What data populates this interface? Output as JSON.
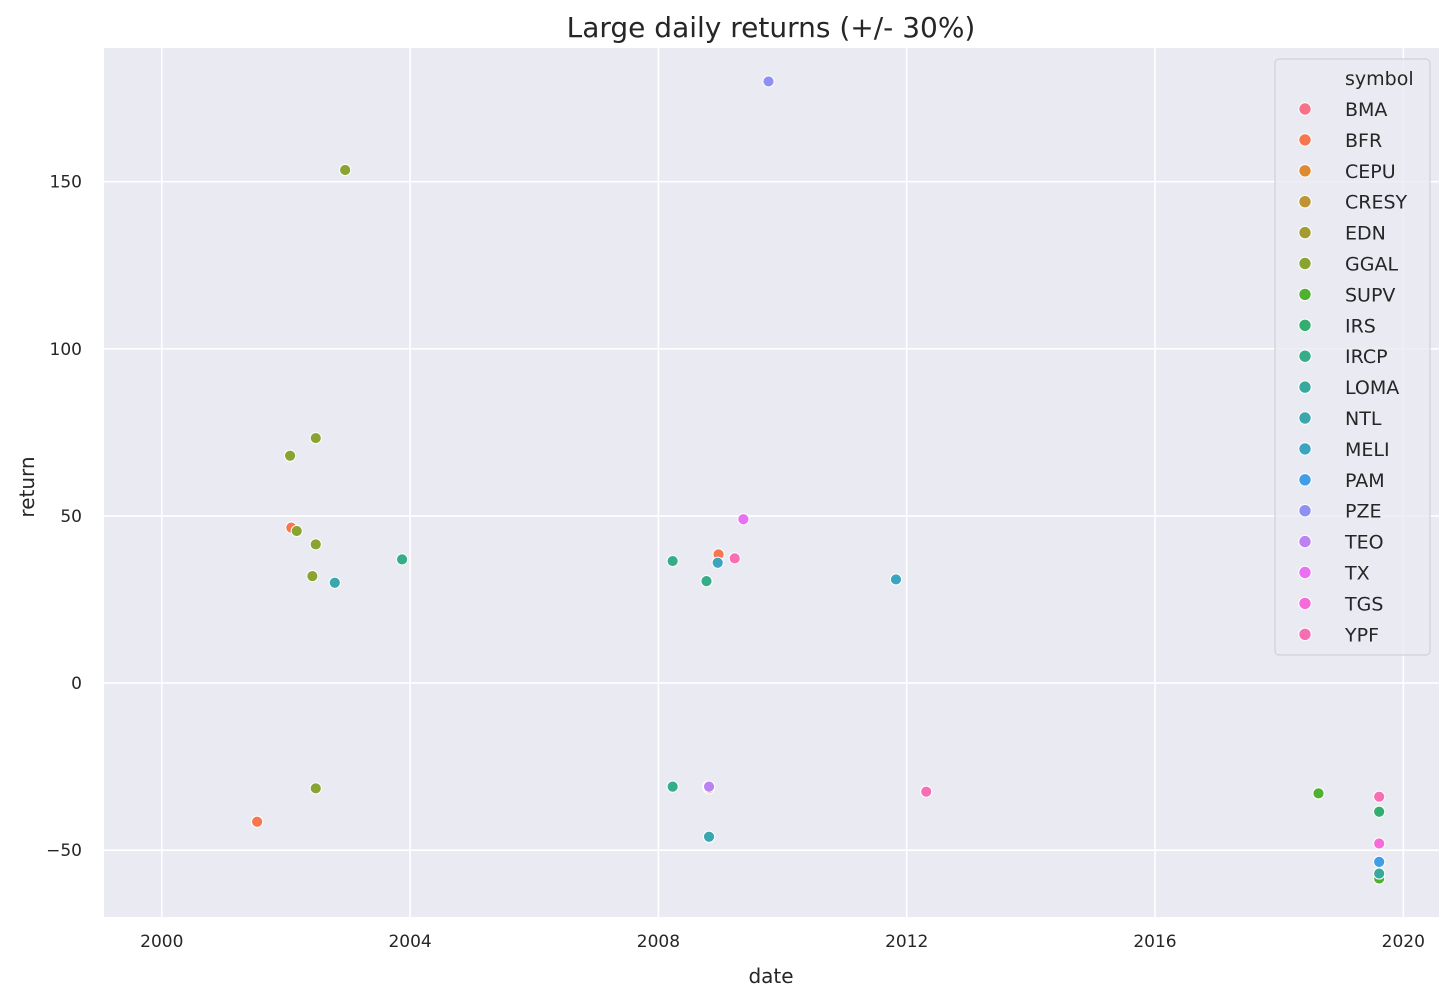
{
  "chart_data": {
    "type": "scatter",
    "title": "Large daily returns (+/- 30%)",
    "xlabel": "date",
    "ylabel": "return",
    "x_ticks": [
      "2000",
      "2004",
      "2008",
      "2012",
      "2016",
      "2020"
    ],
    "x_range": [
      "1999-01-26",
      "2020-07-29"
    ],
    "y_ticks": [
      -50,
      0,
      50,
      100,
      150
    ],
    "ylim": [
      -70,
      190
    ],
    "grid": true,
    "background": "#eaeaf2",
    "legend": {
      "title": "symbol",
      "position": "top-right"
    },
    "series": [
      {
        "name": "BMA",
        "color": "#f77189",
        "points": []
      },
      {
        "name": "BFR",
        "color": "#f7754f",
        "points": [
          [
            "2001-07-15",
            -41.5
          ],
          [
            "2002-02-01",
            46.5
          ],
          [
            "2008-12-20",
            38.5
          ]
        ]
      },
      {
        "name": "CEPU",
        "color": "#dd8a30",
        "points": [
          [
            "2008-10-25",
            -31.5
          ]
        ]
      },
      {
        "name": "CRESY",
        "color": "#be9532",
        "points": []
      },
      {
        "name": "EDN",
        "color": "#a39d31",
        "points": []
      },
      {
        "name": "GGAL",
        "color": "#8aa431",
        "points": [
          [
            "2002-01-25",
            68
          ],
          [
            "2002-06-25",
            73.3
          ],
          [
            "2002-03-05",
            45.5
          ],
          [
            "2002-06-25",
            41.5
          ],
          [
            "2002-06-05",
            32
          ],
          [
            "2002-06-25",
            -31.5
          ],
          [
            "2002-12-15",
            153.5
          ]
        ]
      },
      {
        "name": "SUPV",
        "color": "#50b131",
        "points": [
          [
            "2018-08-20",
            -33
          ],
          [
            "2019-08-12",
            -58.5
          ]
        ]
      },
      {
        "name": "IRS",
        "color": "#34ae70",
        "points": [
          [
            "2019-08-12",
            -38.5
          ]
        ]
      },
      {
        "name": "IRCP",
        "color": "#36ad89",
        "points": [
          [
            "2003-11-15",
            37
          ],
          [
            "2008-03-25",
            36.5
          ],
          [
            "2008-03-25",
            -31
          ],
          [
            "2008-10-10",
            30.5
          ]
        ]
      },
      {
        "name": "LOMA",
        "color": "#38aa9d",
        "points": [
          [
            "2019-08-12",
            -57
          ]
        ]
      },
      {
        "name": "NTL",
        "color": "#3aa7af",
        "points": [
          [
            "2002-10-15",
            30
          ],
          [
            "2008-10-25",
            -46
          ]
        ]
      },
      {
        "name": "MELI",
        "color": "#3ca4c0",
        "points": [
          [
            "2008-12-15",
            36
          ],
          [
            "2011-10-30",
            31
          ]
        ]
      },
      {
        "name": "PAM",
        "color": "#3f9ee7",
        "points": [
          [
            "2019-08-12",
            -53.5
          ]
        ]
      },
      {
        "name": "PZE",
        "color": "#8e90f4",
        "points": [
          [
            "2009-10-10",
            180
          ],
          [
            "2008-10-20",
            -31
          ]
        ]
      },
      {
        "name": "TEO",
        "color": "#bb82f4",
        "points": [
          [
            "2008-10-25",
            -31
          ]
        ]
      },
      {
        "name": "TX",
        "color": "#e96ff4",
        "points": [
          [
            "2009-05-15",
            49
          ]
        ]
      },
      {
        "name": "TGS",
        "color": "#f56cd9",
        "points": [
          [
            "2019-08-12",
            -48
          ]
        ]
      },
      {
        "name": "YPF",
        "color": "#f66fb2",
        "points": [
          [
            "2009-03-25",
            37.3
          ],
          [
            "2012-04-25",
            -32.5
          ],
          [
            "2019-08-12",
            -34
          ]
        ]
      }
    ]
  }
}
